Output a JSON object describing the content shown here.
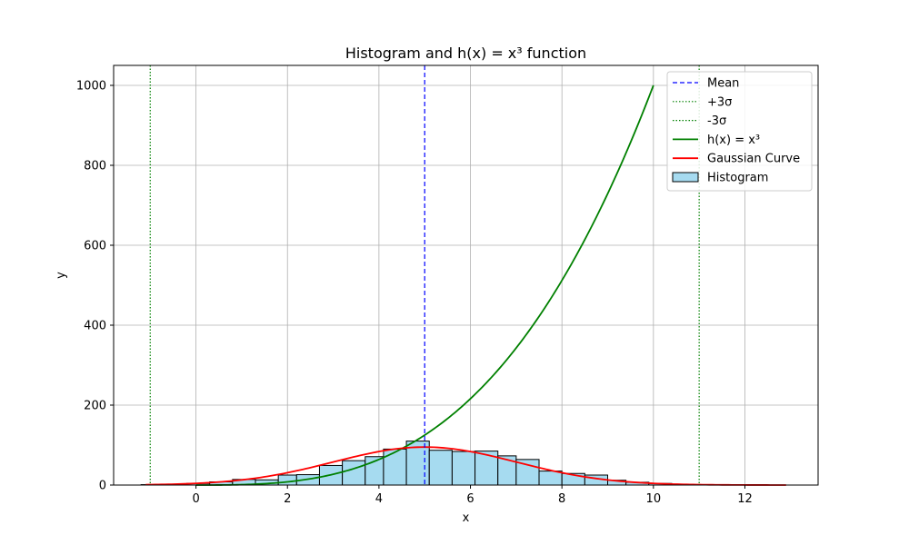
{
  "chart_data": {
    "type": "bar",
    "title": "Histogram and h(x) = x³ function",
    "xlabel": "x",
    "ylabel": "y",
    "xlim": [
      -1.8,
      13.6
    ],
    "ylim": [
      0,
      1050
    ],
    "xticks": [
      0,
      2,
      4,
      6,
      8,
      10,
      12
    ],
    "yticks": [
      0,
      200,
      400,
      600,
      800,
      1000
    ],
    "grid": true,
    "legend_position": "top-right",
    "colors": {
      "histogram_fill": "#a6dbf0",
      "histogram_edge": "#000000",
      "mean_line": "#0000ff",
      "sigma_lines": "#008000",
      "cubic_line": "#008000",
      "gaussian_line": "#ff0000",
      "grid": "#b0b0b0"
    },
    "histogram": {
      "name": "Histogram",
      "bin_edges": [
        -1.2,
        -0.7,
        -0.2,
        0.3,
        0.8,
        1.3,
        1.8,
        2.2,
        2.7,
        3.2,
        3.7,
        4.1,
        4.6,
        5.1,
        5.6,
        6.1,
        6.6,
        7.0,
        7.5,
        8.0,
        8.5,
        9.0,
        9.4,
        9.9,
        10.4
      ],
      "counts": [
        1,
        2,
        4,
        8,
        14,
        13,
        25,
        26,
        49,
        61,
        71,
        90,
        110,
        87,
        84,
        85,
        73,
        64,
        35,
        29,
        25,
        12,
        7,
        4
      ]
    },
    "vlines": [
      {
        "name": "Mean",
        "x": 5.0,
        "style": "dashed",
        "color": "#0000ff"
      },
      {
        "name": "+3σ",
        "x": 11.0,
        "style": "dotted",
        "color": "#008000"
      },
      {
        "name": "-3σ",
        "x": -1.0,
        "style": "dotted",
        "color": "#008000"
      }
    ],
    "series": [
      {
        "name": "h(x) = x³",
        "function": "cube",
        "x_range": [
          0,
          10
        ],
        "color": "#008000"
      },
      {
        "name": "Gaussian Curve",
        "function": "gaussian",
        "mean": 5.0,
        "std": 2.0,
        "peak": 95,
        "x_range": [
          -1.1,
          12.9
        ],
        "color": "#ff0000"
      }
    ],
    "legend": [
      "Mean",
      "+3σ",
      "-3σ",
      "h(x) = x³",
      "Gaussian Curve",
      "Histogram"
    ]
  }
}
